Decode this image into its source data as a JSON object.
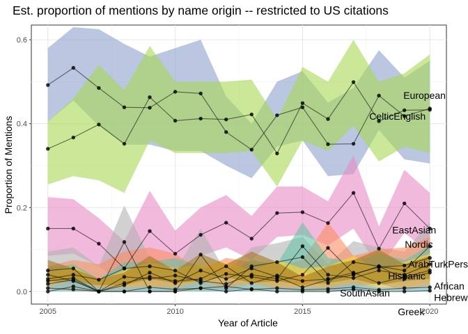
{
  "chart_data": {
    "type": "line",
    "title": "Est. proportion of mentions by name origin -- restricted to US citations",
    "xlabel": "Year of Article",
    "ylabel": "Proportion of Mentions",
    "xlim": [
      2004.35,
      2020.65
    ],
    "ylim": [
      -0.03,
      0.635
    ],
    "xticks": [
      2005,
      2010,
      2015,
      2020
    ],
    "yticks": [
      0.0,
      0.2,
      0.4,
      0.6
    ],
    "xtick_labels": [
      "2005",
      "2010",
      "2015",
      "2020"
    ],
    "ytick_labels": [
      "0.0",
      "0.2",
      "0.4",
      "0.6"
    ],
    "grid": true,
    "legend": "direct labels at end of lines",
    "x": [
      2005,
      2006,
      2007,
      2008,
      2009,
      2010,
      2011,
      2012,
      2013,
      2014,
      2015,
      2016,
      2017,
      2018,
      2019,
      2020
    ],
    "series": [
      {
        "name": "European",
        "color": "#8DA0CB",
        "values": [
          0.492,
          0.533,
          0.485,
          0.439,
          0.438,
          0.476,
          0.472,
          0.38,
          0.338,
          0.42,
          0.439,
          0.351,
          0.352,
          0.467,
          0.418,
          0.436
        ],
        "lower": [
          0.405,
          0.455,
          0.395,
          0.35,
          0.35,
          0.335,
          0.335,
          0.3,
          0.27,
          0.345,
          0.36,
          0.275,
          0.28,
          0.385,
          0.315,
          0.305
        ],
        "upper": [
          0.58,
          0.63,
          0.625,
          0.59,
          0.56,
          0.58,
          0.6,
          0.465,
          0.4,
          0.5,
          0.525,
          0.45,
          0.485,
          0.575,
          0.51,
          0.55
        ]
      },
      {
        "name": "CelticEnglish",
        "color": "#A6D854",
        "values": [
          0.34,
          0.367,
          0.398,
          0.352,
          0.463,
          0.407,
          0.412,
          0.41,
          0.422,
          0.329,
          0.449,
          0.411,
          0.499,
          0.406,
          0.432,
          0.433
        ],
        "lower": [
          0.255,
          0.275,
          0.265,
          0.235,
          0.36,
          0.33,
          0.33,
          0.33,
          0.335,
          0.25,
          0.36,
          0.335,
          0.395,
          0.31,
          0.345,
          0.33
        ],
        "upper": [
          0.405,
          0.46,
          0.54,
          0.48,
          0.585,
          0.5,
          0.5,
          0.5,
          0.505,
          0.41,
          0.535,
          0.5,
          0.6,
          0.5,
          0.52,
          0.565
        ]
      },
      {
        "name": "EastAsian",
        "color": "#E78AC3",
        "values": [
          0.15,
          0.15,
          0.114,
          0.055,
          0.144,
          0.09,
          0.135,
          0.164,
          0.126,
          0.187,
          0.189,
          0.163,
          0.235,
          0.102,
          0.21,
          0.15
        ],
        "lower": [
          0.085,
          0.09,
          0.06,
          0.02,
          0.08,
          0.05,
          0.085,
          0.105,
          0.075,
          0.13,
          0.135,
          0.11,
          0.15,
          0.055,
          0.14,
          0.09
        ],
        "upper": [
          0.225,
          0.22,
          0.175,
          0.12,
          0.24,
          0.145,
          0.2,
          0.23,
          0.18,
          0.25,
          0.25,
          0.215,
          0.325,
          0.155,
          0.29,
          0.235
        ]
      },
      {
        "name": "Nordic",
        "color": "#B3B3B3",
        "values": [
          0.05,
          0.055,
          0.0,
          0.118,
          0.0,
          0.0,
          0.088,
          0.008,
          0.06,
          0.07,
          0.082,
          0.02,
          0.07,
          0.06,
          0.05,
          0.108
        ],
        "lower": [
          0.015,
          0.02,
          0.0,
          0.05,
          0.0,
          0.0,
          0.035,
          0.0,
          0.02,
          0.025,
          0.035,
          0.0,
          0.025,
          0.02,
          0.015,
          0.055
        ],
        "upper": [
          0.095,
          0.105,
          0.06,
          0.205,
          0.08,
          0.05,
          0.15,
          0.045,
          0.105,
          0.115,
          0.13,
          0.065,
          0.12,
          0.105,
          0.095,
          0.165
        ]
      },
      {
        "name": "ArabTurkPers",
        "color": "#FC8D62",
        "values": [
          0.03,
          0.04,
          0.028,
          0.055,
          0.06,
          0.05,
          0.02,
          0.042,
          0.035,
          0.025,
          0.04,
          0.104,
          0.042,
          0.058,
          0.062,
          0.08
        ],
        "lower": [
          0.005,
          0.01,
          0.0,
          0.015,
          0.02,
          0.015,
          0.0,
          0.01,
          0.005,
          0.0,
          0.01,
          0.05,
          0.01,
          0.02,
          0.025,
          0.035
        ],
        "upper": [
          0.06,
          0.075,
          0.065,
          0.095,
          0.105,
          0.09,
          0.05,
          0.08,
          0.07,
          0.06,
          0.075,
          0.165,
          0.085,
          0.1,
          0.105,
          0.13
        ]
      },
      {
        "name": "Hispanic",
        "color": "#66C2A5",
        "values": [
          0.025,
          0.032,
          0.0,
          0.035,
          0.03,
          0.038,
          0.025,
          0.018,
          0.04,
          0.03,
          0.108,
          0.04,
          0.032,
          0.05,
          0.04,
          0.065
        ],
        "lower": [
          0.0,
          0.005,
          0.0,
          0.005,
          0.0,
          0.005,
          0.0,
          0.0,
          0.01,
          0.0,
          0.05,
          0.005,
          0.0,
          0.015,
          0.01,
          0.025
        ],
        "upper": [
          0.055,
          0.065,
          0.03,
          0.07,
          0.07,
          0.08,
          0.06,
          0.045,
          0.075,
          0.065,
          0.165,
          0.08,
          0.07,
          0.09,
          0.075,
          0.11
        ]
      },
      {
        "name": "African",
        "color": "#FFD92F",
        "values": [
          0.018,
          0.028,
          0.0,
          0.02,
          0.035,
          0.025,
          0.03,
          0.06,
          0.02,
          0.038,
          0.025,
          0.03,
          0.045,
          0.02,
          0.035,
          0.05
        ],
        "lower": [
          0.0,
          0.0,
          0.0,
          0.0,
          0.005,
          0.0,
          0.0,
          0.025,
          0.0,
          0.005,
          0.0,
          0.0,
          0.01,
          0.0,
          0.005,
          0.015
        ],
        "upper": [
          0.045,
          0.06,
          0.025,
          0.05,
          0.07,
          0.055,
          0.065,
          0.07,
          0.05,
          0.075,
          0.055,
          0.06,
          0.085,
          0.05,
          0.07,
          0.09
        ]
      },
      {
        "name": "SouthAsian",
        "color": "#A6761D",
        "values": [
          0.04,
          0.025,
          0.0,
          0.015,
          0.045,
          0.02,
          0.05,
          0.03,
          0.055,
          0.035,
          0.01,
          0.028,
          0.04,
          0.06,
          0.03,
          0.045
        ],
        "lower": [
          0.01,
          0.0,
          0.0,
          0.0,
          0.01,
          0.0,
          0.015,
          0.0,
          0.02,
          0.005,
          0.0,
          0.0,
          0.01,
          0.02,
          0.0,
          0.015
        ],
        "upper": [
          0.075,
          0.055,
          0.03,
          0.045,
          0.085,
          0.05,
          0.09,
          0.065,
          0.095,
          0.07,
          0.035,
          0.06,
          0.075,
          0.1,
          0.065,
          0.085
        ]
      },
      {
        "name": "Greek",
        "color": "#E5C494",
        "values": [
          0.008,
          0.005,
          0.0,
          0.0,
          0.01,
          0.005,
          0.008,
          0.012,
          0.005,
          0.008,
          0.004,
          0.006,
          0.01,
          0.004,
          0.008,
          0.01
        ],
        "lower": [
          0.0,
          0.0,
          0.0,
          0.0,
          0.0,
          0.0,
          0.0,
          0.0,
          0.0,
          0.0,
          0.0,
          0.0,
          0.0,
          0.0,
          0.0,
          0.0
        ],
        "upper": [
          0.025,
          0.02,
          0.015,
          0.015,
          0.03,
          0.02,
          0.025,
          0.035,
          0.02,
          0.025,
          0.015,
          0.02,
          0.03,
          0.015,
          0.025,
          0.03
        ]
      },
      {
        "name": "Hebrew",
        "color": "#7FC7E5",
        "values": [
          0.0,
          0.012,
          0.0,
          0.0,
          0.0,
          0.0,
          0.008,
          0.0,
          0.006,
          0.0,
          0.0,
          0.0,
          0.005,
          0.0,
          0.0,
          0.002
        ],
        "lower": [
          0.0,
          0.0,
          0.0,
          0.0,
          0.0,
          0.0,
          0.0,
          0.0,
          0.0,
          0.0,
          0.0,
          0.0,
          0.0,
          0.0,
          0.0,
          0.0
        ],
        "upper": [
          0.012,
          0.03,
          0.01,
          0.01,
          0.012,
          0.01,
          0.025,
          0.01,
          0.02,
          0.01,
          0.01,
          0.01,
          0.02,
          0.01,
          0.01,
          0.015
        ]
      }
    ]
  }
}
